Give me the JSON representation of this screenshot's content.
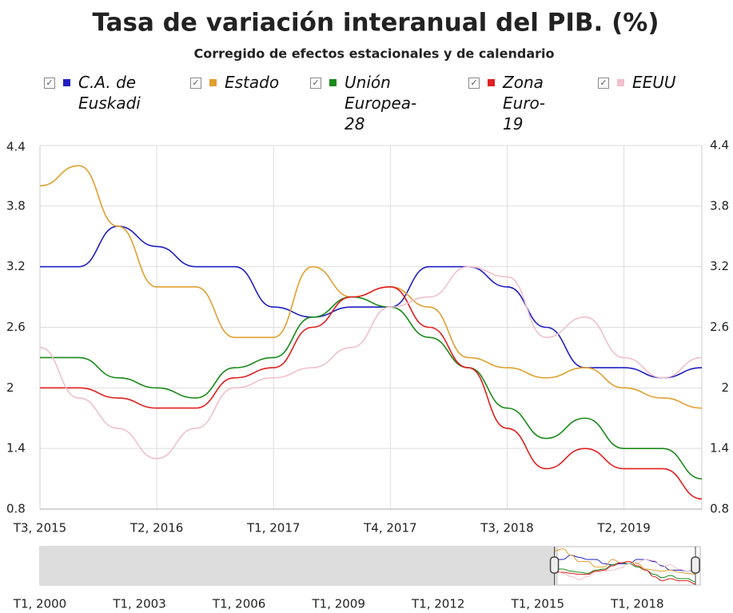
{
  "chart_data": {
    "type": "line",
    "title": "Tasa de variación interanual del PIB. (%)",
    "subtitle": "Corregido de efectos estacionales y de calendario",
    "categories": [
      "T3, 2015",
      null,
      null,
      "T2, 2016",
      null,
      null,
      "T1, 2017",
      null,
      null,
      "T4, 2017",
      null,
      null,
      "T3, 2018",
      null,
      null,
      "T2, 2019",
      null,
      null
    ],
    "series": [
      {
        "name": "C.A. de Euskadi",
        "color": "#2020c0",
        "values": [
          3.2,
          3.2,
          3.6,
          3.4,
          3.2,
          3.2,
          2.8,
          2.7,
          2.8,
          2.8,
          3.2,
          3.2,
          3.0,
          2.6,
          2.2,
          2.2,
          2.1,
          2.2
        ]
      },
      {
        "name": "Estado",
        "color": "#e0a030",
        "values": [
          4.0,
          4.2,
          3.6,
          3.0,
          3.0,
          2.5,
          2.5,
          3.2,
          2.9,
          3.0,
          2.8,
          2.3,
          2.2,
          2.1,
          2.2,
          2.0,
          1.9,
          1.8
        ]
      },
      {
        "name": "Unión Europea-28",
        "color": "#1a8a1a",
        "values": [
          2.3,
          2.3,
          2.1,
          2.0,
          1.9,
          2.2,
          2.3,
          2.7,
          2.9,
          2.8,
          2.5,
          2.2,
          1.8,
          1.5,
          1.7,
          1.4,
          1.4,
          1.1
        ]
      },
      {
        "name": "Zona Euro-19",
        "color": "#e02020",
        "values": [
          2.0,
          2.0,
          1.9,
          1.8,
          1.8,
          2.1,
          2.2,
          2.6,
          2.9,
          3.0,
          2.6,
          2.2,
          1.6,
          1.2,
          1.4,
          1.2,
          1.2,
          0.9
        ]
      },
      {
        "name": "EEUU",
        "color": "#f0c0cc",
        "values": [
          2.4,
          1.9,
          1.6,
          1.3,
          1.6,
          2.0,
          2.1,
          2.2,
          2.4,
          2.8,
          2.9,
          3.2,
          3.1,
          2.5,
          2.7,
          2.3,
          2.1,
          2.3
        ]
      }
    ],
    "ylim": [
      0.8,
      4.4
    ],
    "yticks": [
      0.8,
      1.4,
      2.0,
      2.6,
      3.2,
      3.8,
      4.4
    ],
    "grid": true,
    "navigator_labels": [
      "T1, 2000",
      "T1, 2003",
      "T1, 2006",
      "T1, 2009",
      "T1, 2012",
      "T1, 2015",
      "T1, 2018"
    ]
  }
}
